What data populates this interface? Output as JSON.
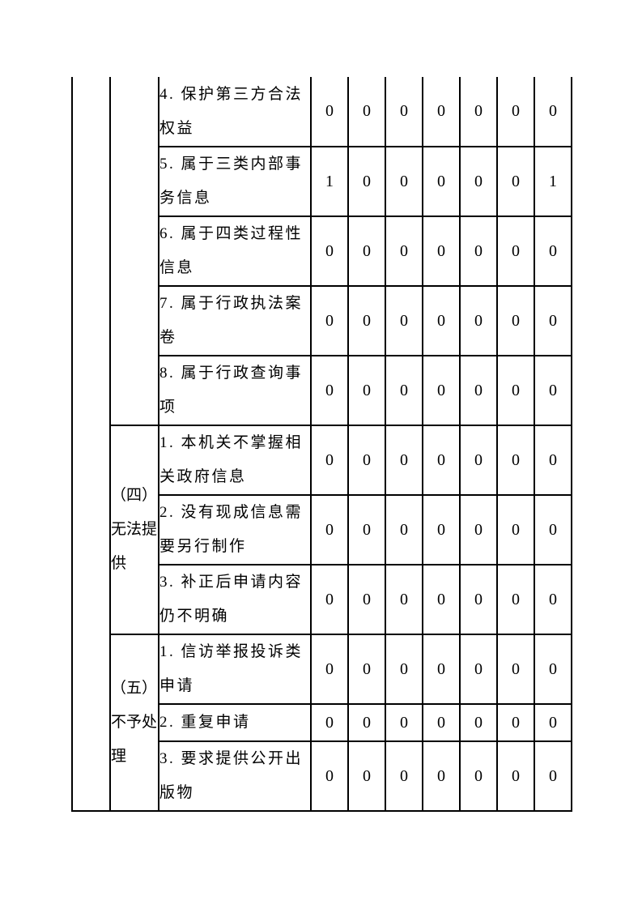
{
  "colors": {
    "page_background": "#ffffff",
    "border": "#000000",
    "text": "#000000"
  },
  "table": {
    "value_column_count": 7,
    "continues_from_previous_page": true,
    "groups": [
      {
        "category": "",
        "rows": [
          {
            "item": "4. 保护第三方合法\n权益",
            "values": [
              "0",
              "0",
              "0",
              "0",
              "0",
              "0",
              "0"
            ]
          },
          {
            "item": "5. 属于三类内部事\n务信息",
            "values": [
              "1",
              "0",
              "0",
              "0",
              "0",
              "0",
              "1"
            ]
          },
          {
            "item": "6. 属于四类过程性\n信息",
            "values": [
              "0",
              "0",
              "0",
              "0",
              "0",
              "0",
              "0"
            ]
          },
          {
            "item": "7. 属于行政执法案\n卷",
            "values": [
              "0",
              "0",
              "0",
              "0",
              "0",
              "0",
              "0"
            ]
          },
          {
            "item": "8. 属于行政查询事\n项",
            "values": [
              "0",
              "0",
              "0",
              "0",
              "0",
              "0",
              "0"
            ]
          }
        ]
      },
      {
        "category": "（四）\n无法提\n供",
        "rows": [
          {
            "item": "1. 本机关不掌握相\n关政府信息",
            "values": [
              "0",
              "0",
              "0",
              "0",
              "0",
              "0",
              "0"
            ]
          },
          {
            "item": "2. 没有现成信息需\n要另行制作",
            "values": [
              "0",
              "0",
              "0",
              "0",
              "0",
              "0",
              "0"
            ]
          },
          {
            "item": "3. 补正后申请内容\n仍不明确",
            "values": [
              "0",
              "0",
              "0",
              "0",
              "0",
              "0",
              "0"
            ]
          }
        ]
      },
      {
        "category": "（五）\n不予处\n理",
        "rows": [
          {
            "item": "1. 信访举报投诉类\n申请",
            "values": [
              "0",
              "0",
              "0",
              "0",
              "0",
              "0",
              "0"
            ]
          },
          {
            "item": "2. 重复申请",
            "values": [
              "0",
              "0",
              "0",
              "0",
              "0",
              "0",
              "0"
            ]
          },
          {
            "item": "3. 要求提供公开出\n版物",
            "values": [
              "0",
              "0",
              "0",
              "0",
              "0",
              "0",
              "0"
            ]
          }
        ]
      }
    ]
  }
}
